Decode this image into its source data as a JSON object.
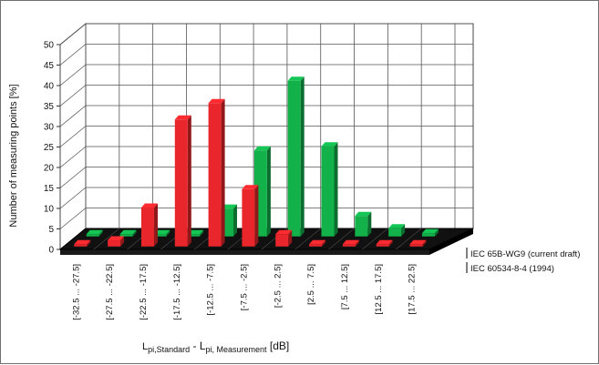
{
  "chart_data": {
    "type": "bar",
    "subtype": "3d-grouped",
    "title": "",
    "ylabel": "Number of measuring points [%]",
    "xlabel": {
      "main": "L",
      "sub1": "pi,Standard",
      "sep": " - L",
      "sub2": "pi, Measurement",
      "unit": " [dB]"
    },
    "ylim": [
      0,
      50
    ],
    "yticks": [
      0,
      5,
      10,
      15,
      20,
      25,
      30,
      35,
      40,
      45,
      50
    ],
    "grid": true,
    "categories": [
      "[-32.5 ... -27.5]",
      "[-27.5 ... -22.5]",
      "[-22.5 ... -17.5]",
      "[-17.5 ... -12.5]",
      "[-12.5 ... -7.5]",
      "[-7.5 ... -2.5]",
      "[-2.5 ... 2.5]",
      "[2.5 ... 7.5]",
      "[7.5 ... 12.5]",
      "[12.5 ... 17.5]",
      "[17.5 ... 22.5]"
    ],
    "series": [
      {
        "name": "IEC 60534-8-4 (1994)",
        "color": "#e8262b",
        "values": [
          0.3,
          1.5,
          9.5,
          31,
          35,
          14,
          3,
          0.5,
          0.5,
          0.3,
          0.3
        ]
      },
      {
        "name": "IEC 65B-WG9 (current draft)",
        "color": "#12b14a",
        "values": [
          0.3,
          0.3,
          0.3,
          0.3,
          6.8,
          21,
          38,
          22,
          5,
          2,
          0.8
        ]
      }
    ],
    "legend_position": "right"
  }
}
